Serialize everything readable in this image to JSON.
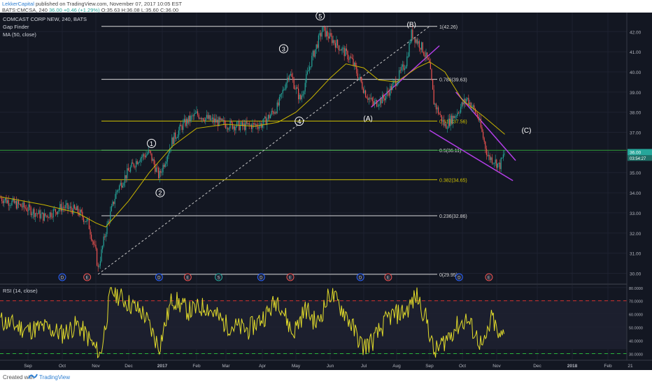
{
  "header": {
    "author": "LekkerCapital",
    "published_text": "published on TradingView.com, November 07, 2017 10:05 EST",
    "symbol_line": "BATS:CMCSA, 240",
    "last": "36.00",
    "change": "+0.46 (+1.29%)",
    "open": "O:35.63",
    "high": "H:36.08",
    "low": "L:35.60",
    "close": "C:36.00"
  },
  "legend": {
    "title": "COMCAST CORP NEW, 240, BATS",
    "indicator1": "Gap Finder",
    "indicator2": "MA (50, close)",
    "rsi": "RSI (14, close)"
  },
  "colors": {
    "background": "#131722",
    "up": "#26a69a",
    "down": "#ef5350",
    "ma": "#c8b400",
    "fib_white": "#d9d9d9",
    "fib_yellow": "#cfc200",
    "fib_green": "#2e9e37",
    "channel": "#b33ee8",
    "rsi_line": "#e2dc2b",
    "rsi_upper": "#d3302f",
    "rsi_lower": "#29b33b",
    "price_tag": "#26a69a"
  },
  "footer": {
    "created_with": "Created with",
    "brand": "TradingView"
  },
  "chart_data": {
    "type": "line",
    "price_axis": {
      "ticks": [
        "42.00",
        "41.00",
        "40.00",
        "39.00",
        "38.00",
        "37.00",
        "36.00",
        "35.00",
        "34.00",
        "33.00",
        "32.00",
        "31.00",
        "30.00"
      ],
      "ylim": [
        29.6,
        42.6
      ],
      "last_price": "36.00",
      "countdown": "03:54:27"
    },
    "rsi_axis": {
      "ticks": [
        "80.0000",
        "70.0000",
        "60.0000",
        "50.0000",
        "40.0000",
        "30.0000"
      ],
      "ylim": [
        25,
        82
      ],
      "upper_level": 70,
      "lower_level": 30
    },
    "x_axis": {
      "labels": [
        "Sep",
        "Oct",
        "Nov",
        "Dec",
        "2017",
        "Feb",
        "Mar",
        "Apr",
        "May",
        "Jun",
        "Jul",
        "Aug",
        "Sep",
        "Oct",
        "Nov",
        "Dec",
        "2018",
        "Feb",
        "21"
      ],
      "bold": [
        "2017",
        "2018"
      ]
    },
    "fib_levels": [
      {
        "label": "1(42.26)",
        "value": 42.26,
        "color": "white"
      },
      {
        "label": "0.786(39.63)",
        "value": 39.63,
        "color": "white"
      },
      {
        "label": "0.618(37.56)",
        "value": 37.56,
        "color": "yellow"
      },
      {
        "label": "0.5(36.11)",
        "value": 36.11,
        "color": "white"
      },
      {
        "label": "0.382(34.65)",
        "value": 34.65,
        "color": "yellow"
      },
      {
        "label": "0.236(32.86)",
        "value": 32.86,
        "color": "white"
      },
      {
        "label": "0(29.95)",
        "value": 29.95,
        "color": "white"
      }
    ],
    "wave_labels": [
      {
        "text": "1",
        "circled": true,
        "x": "2016-12-22",
        "y": 36.45
      },
      {
        "text": "2",
        "circled": true,
        "x": "2016-12-30",
        "y": 34.0
      },
      {
        "text": "3",
        "circled": true,
        "x": "2017-04-20",
        "y": 41.15
      },
      {
        "text": "4",
        "circled": true,
        "x": "2017-05-04",
        "y": 37.55
      },
      {
        "text": "5",
        "circled": true,
        "x": "2017-05-23",
        "y": 42.78
      },
      {
        "text": "(A)",
        "circled": false,
        "x": "2017-07-05",
        "y": 37.7
      },
      {
        "text": "(B)",
        "circled": false,
        "x": "2017-08-15",
        "y": 42.35
      },
      {
        "text": "(C)",
        "circled": false,
        "x": "2017-11-23",
        "y": 37.1
      }
    ],
    "event_markers": [
      {
        "text": "D",
        "x": "2016-10-01"
      },
      {
        "text": "E",
        "x": "2016-10-24"
      },
      {
        "text": "D",
        "x": "2016-12-29"
      },
      {
        "text": "E",
        "x": "2017-01-24"
      },
      {
        "text": "S",
        "x": "2017-02-22"
      },
      {
        "text": "D",
        "x": "2017-03-31"
      },
      {
        "text": "E",
        "x": "2017-04-26"
      },
      {
        "text": "D",
        "x": "2017-06-28"
      },
      {
        "text": "E",
        "x": "2017-07-24"
      },
      {
        "text": "D",
        "x": "2017-09-28"
      },
      {
        "text": "E",
        "x": "2017-10-25"
      }
    ],
    "series": [
      {
        "x": [
          "2016-08-15",
          "2016-09-01",
          "2016-09-15",
          "2016-10-01",
          "2016-10-15",
          "2016-10-25",
          "2016-11-01",
          "2016-11-03",
          "2016-11-10",
          "2016-11-20",
          "2016-12-01",
          "2016-12-10",
          "2016-12-20",
          "2016-12-29",
          "2017-01-10",
          "2017-01-20",
          "2017-02-01",
          "2017-02-15",
          "2017-03-01",
          "2017-03-15",
          "2017-04-01",
          "2017-04-15",
          "2017-04-25",
          "2017-05-05",
          "2017-05-15",
          "2017-05-25",
          "2017-06-01",
          "2017-06-10",
          "2017-06-20",
          "2017-07-03",
          "2017-07-10",
          "2017-07-20",
          "2017-08-01",
          "2017-08-10",
          "2017-08-15",
          "2017-08-25",
          "2017-09-01",
          "2017-09-05",
          "2017-09-15",
          "2017-09-25",
          "2017-10-05",
          "2017-10-15",
          "2017-10-24",
          "2017-10-30",
          "2017-11-03",
          "2017-11-07"
        ],
        "values": [
          33.75,
          33.2,
          32.8,
          33.3,
          33.1,
          32.5,
          31.0,
          30.2,
          32.1,
          34.1,
          35.1,
          35.7,
          36.0,
          34.8,
          36.6,
          37.4,
          37.9,
          37.6,
          37.4,
          37.3,
          37.4,
          38.3,
          40.0,
          38.6,
          40.6,
          42.1,
          41.7,
          41.2,
          40.6,
          38.9,
          38.4,
          38.7,
          39.6,
          40.5,
          41.9,
          41.2,
          40.3,
          38.5,
          37.3,
          37.9,
          38.7,
          37.8,
          35.8,
          35.6,
          35.3,
          36.0
        ]
      },
      {
        "name": "MA (50, close)",
        "x": [
          "2016-08-15",
          "2016-09-15",
          "2016-10-15",
          "2016-11-01",
          "2016-11-10",
          "2016-12-01",
          "2016-12-20",
          "2017-01-10",
          "2017-02-01",
          "2017-03-01",
          "2017-03-25",
          "2017-04-15",
          "2017-05-01",
          "2017-05-15",
          "2017-06-01",
          "2017-06-15",
          "2017-07-01",
          "2017-07-15",
          "2017-08-01",
          "2017-08-20",
          "2017-09-01",
          "2017-09-15",
          "2017-10-01",
          "2017-10-20",
          "2017-11-07"
        ],
        "values": [
          33.8,
          33.4,
          33.0,
          32.5,
          32.3,
          33.6,
          35.0,
          36.3,
          37.2,
          37.4,
          37.3,
          37.5,
          38.0,
          38.7,
          39.7,
          40.4,
          40.2,
          39.6,
          39.5,
          40.2,
          40.5,
          40.0,
          38.6,
          37.8,
          36.9
        ]
      },
      {
        "name": "RSI (14, close)",
        "x": [
          "2016-08-15",
          "2016-09-01",
          "2016-09-15",
          "2016-10-01",
          "2016-10-15",
          "2016-10-25",
          "2016-11-05",
          "2016-11-15",
          "2016-12-01",
          "2016-12-15",
          "2016-12-29",
          "2017-01-10",
          "2017-01-25",
          "2017-02-10",
          "2017-03-01",
          "2017-03-20",
          "2017-04-05",
          "2017-04-15",
          "2017-04-28",
          "2017-05-10",
          "2017-05-20",
          "2017-06-01",
          "2017-06-15",
          "2017-06-30",
          "2017-07-10",
          "2017-07-25",
          "2017-08-10",
          "2017-08-20",
          "2017-08-30",
          "2017-09-05",
          "2017-09-15",
          "2017-09-25",
          "2017-10-05",
          "2017-10-20",
          "2017-10-28",
          "2017-11-03",
          "2017-11-07"
        ],
        "values": [
          55,
          48,
          50,
          45,
          52,
          42,
          28,
          78,
          68,
          60,
          35,
          72,
          62,
          66,
          52,
          48,
          60,
          72,
          45,
          64,
          52,
          76,
          60,
          35,
          40,
          58,
          62,
          74,
          54,
          30,
          40,
          50,
          56,
          34,
          58,
          40,
          48
        ]
      }
    ]
  }
}
